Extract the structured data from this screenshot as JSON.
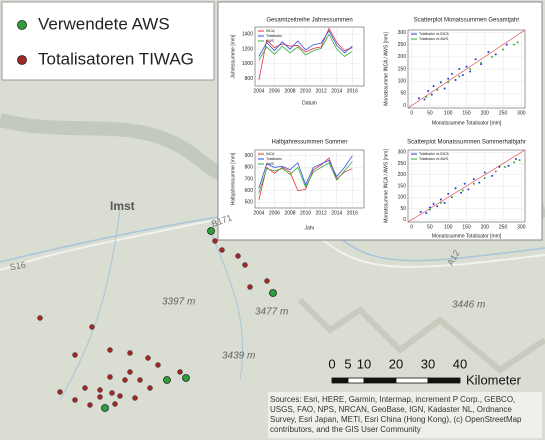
{
  "map": {
    "legend": [
      {
        "label": "Verwendete AWS",
        "color": "#2e9e3a"
      },
      {
        "label": "Totalisatoren TIWAG",
        "color": "#a02828"
      }
    ],
    "place_labels": [
      "Imst"
    ],
    "peaks": [
      "3397 m",
      "3477 m",
      "3439 m",
      "3446 m"
    ],
    "roads": [
      "B171",
      "S16",
      "A12"
    ],
    "scalebar": {
      "ticks": [
        0,
        5,
        10,
        20,
        30,
        40
      ],
      "unit": "Kilometer"
    },
    "attribution": [
      "Sources: Esri, HERE, Garmin, Intermap, increment P Corp., GEBCO,",
      "USGS, FAO, NPS, NRCAN, GeoBase, IGN, Kadaster NL, Ordnance",
      "Survey, Esri Japan, METI, Esri China (Hong Kong), (c) OpenStreetMap",
      "contributors, and the GIS User Community"
    ]
  },
  "chart_data": [
    {
      "type": "line",
      "title": "Gesamtzeitreihe Jahressummen",
      "x_label": "Datum",
      "y_label": "Jahressumme [mm]",
      "x": [
        2004,
        2005,
        2006,
        2007,
        2008,
        2009,
        2010,
        2011,
        2012,
        2013,
        2014,
        2015,
        2016
      ],
      "series": [
        {
          "name": "INCA",
          "color": "#e8303a",
          "values": [
            780,
            1320,
            1220,
            1270,
            1240,
            1250,
            1160,
            1210,
            1230,
            1480,
            1290,
            1180,
            1220
          ]
        },
        {
          "name": "Totalisator",
          "color": "#3050e0",
          "values": [
            1100,
            1290,
            1180,
            1300,
            1200,
            1310,
            1190,
            1260,
            1280,
            1450,
            1250,
            1150,
            1240
          ]
        },
        {
          "name": "AWS",
          "color": "#30b040",
          "values": [
            1050,
            1230,
            1130,
            1240,
            1150,
            1230,
            1120,
            1180,
            1210,
            1400,
            1200,
            1100,
            1170
          ]
        }
      ],
      "xlim": [
        2003.5,
        2017.5
      ],
      "xticks": [
        2004,
        2006,
        2008,
        2010,
        2012,
        2014,
        2016
      ],
      "ylim": [
        700,
        1500
      ],
      "yticks": [
        800,
        1000,
        1200,
        1400
      ],
      "grid": true
    },
    {
      "type": "scatter",
      "title": "Scatterplot Monatssummen Gesamtjahr",
      "x_label": "Monatssumme Totalisator [mm]",
      "y_label": "Monatssumme INCA / AWS [mm]",
      "series": [
        {
          "name": "Totalisator vs INCA",
          "color": "#2040d0",
          "x": [
            20,
            35,
            45,
            55,
            60,
            70,
            80,
            90,
            100,
            110,
            120,
            130,
            140,
            150,
            160,
            175,
            190,
            210,
            230,
            260
          ],
          "values": [
            30,
            25,
            60,
            45,
            80,
            65,
            95,
            70,
            110,
            130,
            105,
            150,
            125,
            160,
            140,
            190,
            170,
            220,
            210,
            250
          ]
        },
        {
          "name": "Totalisator vs AWS",
          "color": "#30b040",
          "x": [
            40,
            70,
            100,
            130,
            160,
            190,
            220,
            250,
            280,
            290
          ],
          "values": [
            35,
            65,
            95,
            120,
            150,
            175,
            200,
            230,
            250,
            260
          ]
        }
      ],
      "xlim": [
        -10,
        310
      ],
      "xticks": [
        0,
        50,
        100,
        150,
        200,
        250,
        300
      ],
      "ylim": [
        -10,
        310
      ],
      "yticks": [
        0,
        50,
        100,
        150,
        200,
        250,
        300
      ],
      "grid": true
    },
    {
      "type": "line",
      "title": "Halbjahressummen Sommer",
      "x_label": "Jahr",
      "y_label": "Halbjahressumme [mm]",
      "x": [
        2004,
        2005,
        2006,
        2007,
        2008,
        2009,
        2010,
        2011,
        2012,
        2013,
        2014,
        2015,
        2016
      ],
      "series": [
        {
          "name": "INCA",
          "color": "#e8303a",
          "values": [
            520,
            800,
            750,
            800,
            760,
            600,
            610,
            780,
            820,
            880,
            700,
            760,
            790
          ]
        },
        {
          "name": "Totalisator",
          "color": "#3050e0",
          "values": [
            620,
            830,
            800,
            810,
            780,
            840,
            650,
            800,
            830,
            860,
            720,
            800,
            900
          ]
        },
        {
          "name": "AWS",
          "color": "#30b040",
          "values": [
            580,
            790,
            770,
            790,
            740,
            800,
            630,
            760,
            800,
            840,
            690,
            770,
            850
          ]
        }
      ],
      "xlim": [
        2003.5,
        2017.5
      ],
      "xticks": [
        2004,
        2006,
        2008,
        2010,
        2012,
        2014,
        2016
      ],
      "ylim": [
        450,
        950
      ],
      "yticks": [
        500,
        600,
        700,
        800,
        900
      ],
      "grid": true
    },
    {
      "type": "scatter",
      "title": "Scatterplot Monatssummen Sommerhalbjahr",
      "x_label": "Monatssumme Totalisator [mm]",
      "y_label": "Monatssumme INCA / AWS [mm]",
      "series": [
        {
          "name": "Totalisator vs INCA",
          "color": "#2040d0",
          "x": [
            25,
            40,
            50,
            60,
            70,
            80,
            90,
            100,
            110,
            120,
            135,
            145,
            155,
            170,
            185,
            200,
            220,
            240,
            265,
            285
          ],
          "values": [
            35,
            30,
            55,
            70,
            60,
            90,
            75,
            115,
            100,
            140,
            120,
            160,
            135,
            180,
            165,
            210,
            195,
            235,
            240,
            270
          ]
        },
        {
          "name": "Totalisator vs AWS",
          "color": "#30b040",
          "x": [
            50,
            80,
            110,
            140,
            170,
            200,
            230,
            255,
            280,
            295
          ],
          "values": [
            45,
            75,
            100,
            130,
            160,
            185,
            215,
            235,
            255,
            265
          ]
        }
      ],
      "xlim": [
        -10,
        310
      ],
      "xticks": [
        0,
        50,
        100,
        150,
        200,
        250,
        300
      ],
      "ylim": [
        -10,
        310
      ],
      "yticks": [
        0,
        50,
        100,
        150,
        200,
        250,
        300
      ],
      "grid": true
    }
  ]
}
